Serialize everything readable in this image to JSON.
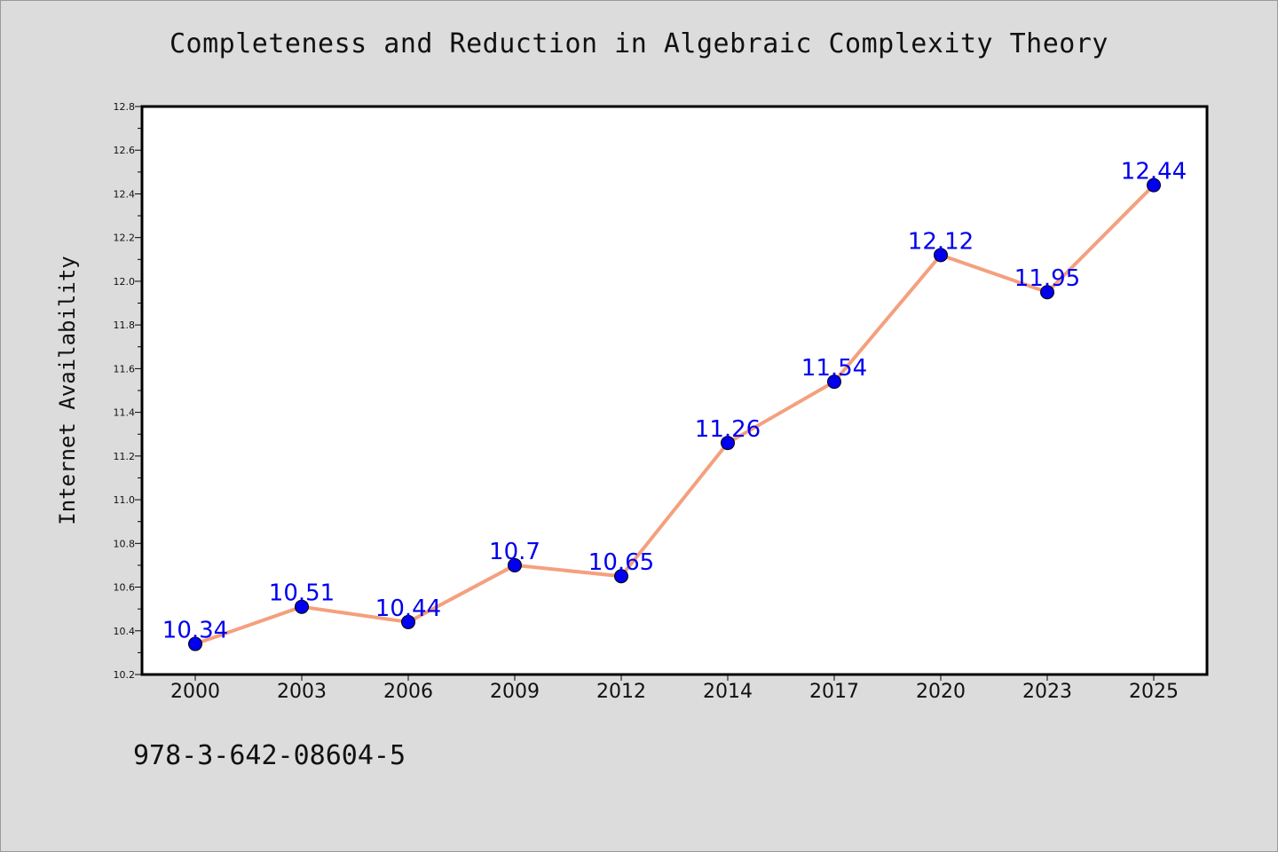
{
  "title": "Completeness and Reduction in Algebraic Complexity Theory",
  "footnote": "978-3-642-08604-5",
  "chart_data": {
    "type": "line",
    "title": "Completeness and Reduction in Algebraic Complexity Theory",
    "xlabel": "",
    "ylabel": "Internet Availability",
    "categories": [
      "2000",
      "2003",
      "2006",
      "2009",
      "2012",
      "2014",
      "2017",
      "2020",
      "2023",
      "2025"
    ],
    "series": [
      {
        "values": [
          10.34,
          10.51,
          10.44,
          10.7,
          10.65,
          11.26,
          11.54,
          12.12,
          11.95,
          12.44
        ],
        "labels": [
          "10.34",
          "10.51",
          "10.44",
          "10.7",
          "10.65",
          "11.26",
          "11.54",
          "12.12",
          "11.95",
          "12.44"
        ]
      }
    ],
    "ylim": [
      10.2,
      12.8
    ],
    "yticks": [
      "10.2",
      "10.4",
      "10.6",
      "10.8",
      "11.0",
      "11.2",
      "11.4",
      "11.6",
      "11.8",
      "12.0",
      "12.2",
      "12.4",
      "12.6",
      "12.8"
    ],
    "grid": false,
    "colors": {
      "line": "#f4a07e",
      "marker": "#0000ee",
      "marker_edge": "#000000",
      "data_label": "#0000ee",
      "plot_background": "#ffffff",
      "page_background": "#dcdcdc"
    }
  }
}
